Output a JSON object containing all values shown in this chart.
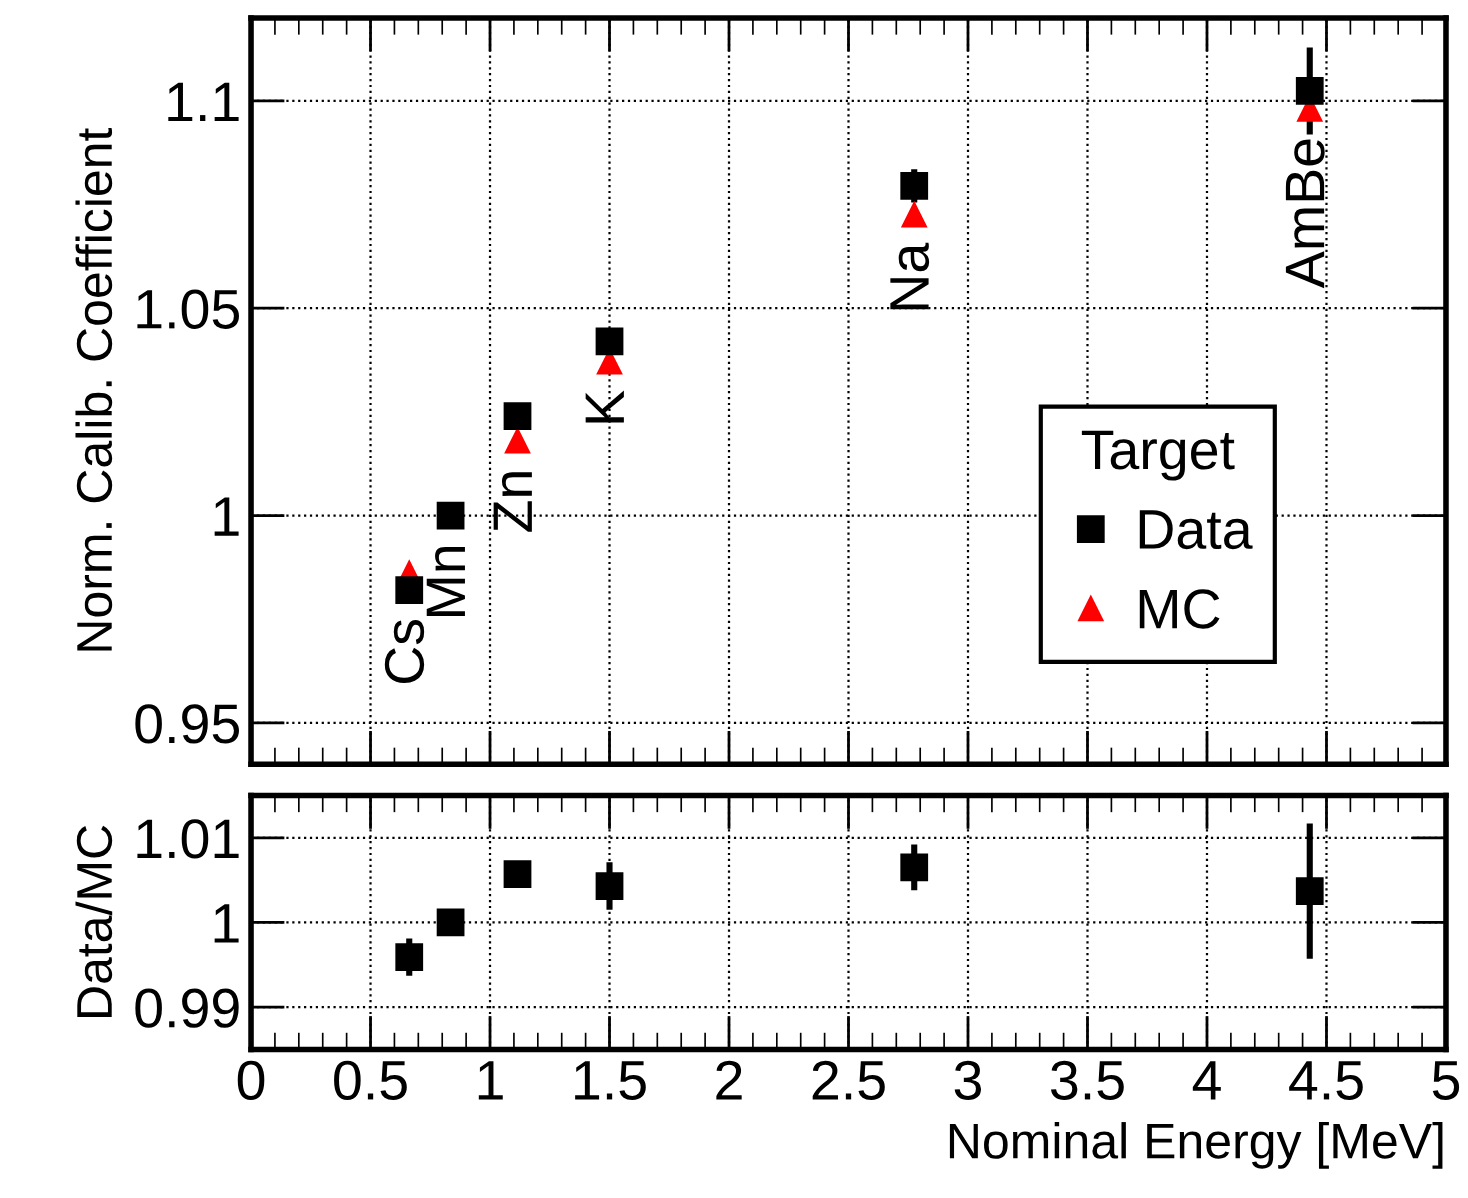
{
  "chart_data": [
    {
      "type": "scatter",
      "ylabel": "Norm. Calib. Coefficient",
      "x": [
        0.662,
        0.835,
        1.115,
        1.5,
        2.775,
        4.43
      ],
      "series": [
        {
          "name": "Data",
          "color": "#000000",
          "marker": "square",
          "values": [
            0.982,
            1.0,
            1.024,
            1.042,
            1.0795,
            1.1024
          ],
          "errors": [
            null,
            null,
            null,
            null,
            0.004,
            0.0105
          ]
        },
        {
          "name": "MC",
          "color": "#ff0000",
          "marker": "triangle",
          "values": [
            0.986,
            null,
            1.018,
            1.037,
            1.0725,
            1.098
          ]
        }
      ],
      "annotations": [
        {
          "text": "Cs",
          "x": 0.662,
          "y": 0.982
        },
        {
          "text": "Mn",
          "x": 0.835,
          "y": 1.0
        },
        {
          "text": "Zn",
          "x": 1.115,
          "y": 1.018
        },
        {
          "text": "K",
          "x": 1.5,
          "y": 1.037
        },
        {
          "text": "Na",
          "x": 2.775,
          "y": 1.0725
        },
        {
          "text": "AmBe",
          "x": 4.43,
          "y": 1.098
        }
      ],
      "xlim": [
        0,
        5
      ],
      "ylim": [
        0.94,
        1.12
      ],
      "yticks": [
        0.95,
        1,
        1.05,
        1.1
      ],
      "xticks": [
        0,
        0.5,
        1,
        1.5,
        2,
        2.5,
        3,
        3.5,
        4,
        4.5,
        5
      ],
      "tick_labels": "y",
      "grid": true,
      "legend": "lower right",
      "legend_title": "Target"
    },
    {
      "type": "scatter",
      "xlabel": "Nominal Energy [MeV]",
      "ylabel": "Data/MC",
      "x": [
        0.662,
        0.835,
        1.115,
        1.5,
        2.775,
        4.43
      ],
      "series": [
        {
          "color": "#000000",
          "marker": "square",
          "values": [
            0.9959,
            1.0,
            1.0057,
            1.0043,
            1.0065,
            1.0037
          ],
          "errors": [
            0.0022,
            null,
            null,
            0.0028,
            0.0027,
            0.008
          ]
        }
      ],
      "xlim": [
        0,
        5
      ],
      "ylim": [
        0.985,
        1.015
      ],
      "yticks": [
        0.99,
        1,
        1.01
      ],
      "xticks": [
        0,
        0.5,
        1,
        1.5,
        2,
        2.5,
        3,
        3.5,
        4,
        4.5,
        5
      ],
      "grid": true
    }
  ]
}
